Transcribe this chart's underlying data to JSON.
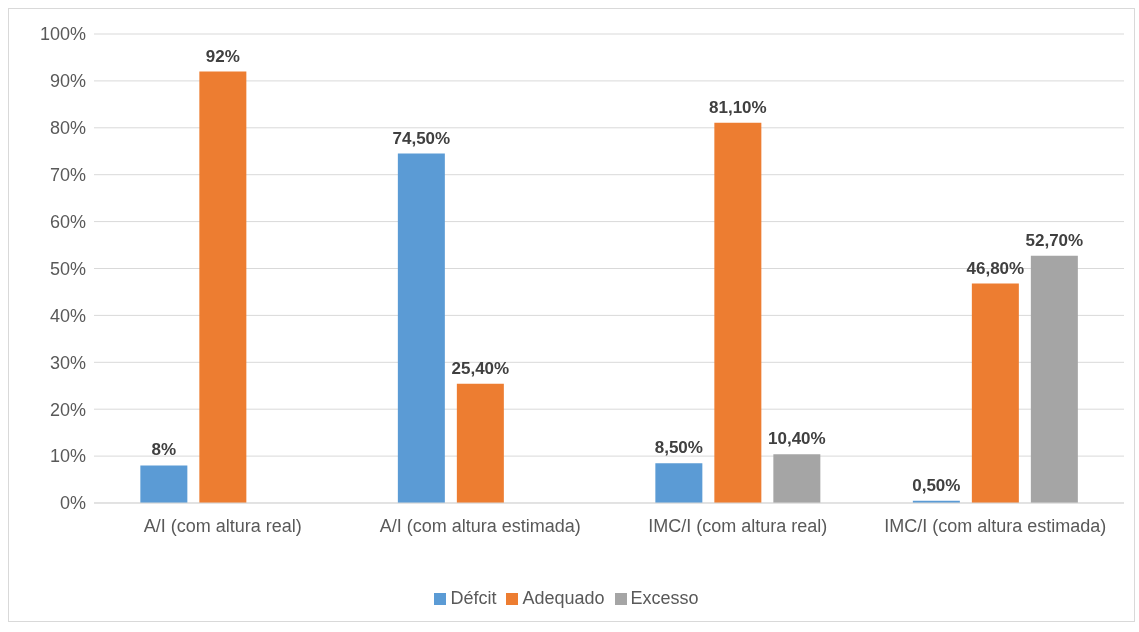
{
  "chart_data": {
    "type": "bar",
    "categories": [
      "A/I (com altura real)",
      "A/I (com altura estimada)",
      "IMC/I (com altura real)",
      "IMC/I (com altura estimada)"
    ],
    "series": [
      {
        "name": "Défcit",
        "color": "#5b9bd5",
        "values": [
          8,
          74.5,
          8.5,
          0.5
        ],
        "value_labels": [
          "8%",
          "74,50%",
          "8,50%",
          "0,50%"
        ]
      },
      {
        "name": "Adequado",
        "color": "#ed7d31",
        "values": [
          92,
          25.4,
          81.1,
          46.8
        ],
        "value_labels": [
          "92%",
          "25,40%",
          "81,10%",
          "46,80%"
        ]
      },
      {
        "name": "Excesso",
        "color": "#a5a5a5",
        "values": [
          null,
          null,
          10.4,
          52.7
        ],
        "value_labels": [
          null,
          null,
          "10,40%",
          "52,70%"
        ]
      }
    ],
    "ylim": [
      0,
      100
    ],
    "yticks": [
      {
        "value": 0,
        "label": "0%"
      },
      {
        "value": 10,
        "label": "10%"
      },
      {
        "value": 20,
        "label": "20%"
      },
      {
        "value": 30,
        "label": "30%"
      },
      {
        "value": 40,
        "label": "40%"
      },
      {
        "value": 50,
        "label": "50%"
      },
      {
        "value": 60,
        "label": "60%"
      },
      {
        "value": 70,
        "label": "70%"
      },
      {
        "value": 80,
        "label": "80%"
      },
      {
        "value": 90,
        "label": "90%"
      },
      {
        "value": 100,
        "label": "100%"
      }
    ],
    "grid": "y",
    "legend": "bottom"
  }
}
